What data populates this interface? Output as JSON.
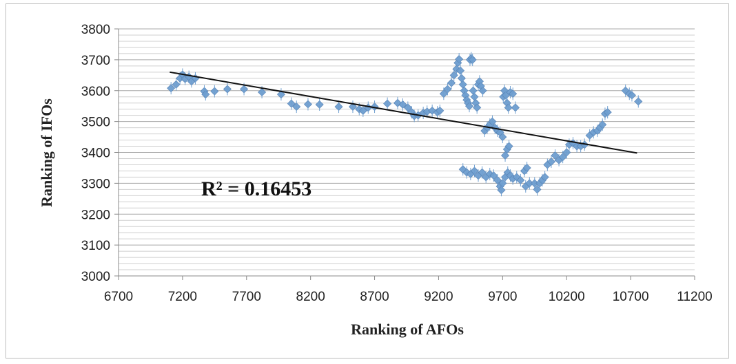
{
  "chart_data": {
    "type": "scatter",
    "xlabel": "Ranking of AFOs",
    "ylabel": "Ranking of IFOs",
    "annotation": "R² = 0.16453",
    "xlim": [
      6700,
      11200
    ],
    "ylim": [
      3000,
      3800
    ],
    "x_ticks": [
      6700,
      7200,
      7700,
      8200,
      8700,
      9200,
      9700,
      10200,
      10700,
      11200
    ],
    "y_ticks": [
      3000,
      3100,
      3200,
      3300,
      3400,
      3500,
      3600,
      3700,
      3800
    ],
    "grid_step_y": 20,
    "legend": "none",
    "marker_color": "#6f9fd0",
    "trendline": {
      "x": [
        7100,
        10750
      ],
      "y": [
        3660,
        3398
      ]
    },
    "series": [
      {
        "points": [
          [
            7110,
            3608
          ],
          [
            7150,
            3620
          ],
          [
            7180,
            3640
          ],
          [
            7200,
            3652
          ],
          [
            7220,
            3638
          ],
          [
            7250,
            3645
          ],
          [
            7270,
            3630
          ],
          [
            7300,
            3640
          ],
          [
            7370,
            3598
          ],
          [
            7380,
            3588
          ],
          [
            7450,
            3598
          ],
          [
            7550,
            3605
          ],
          [
            7680,
            3605
          ],
          [
            7820,
            3595
          ],
          [
            7970,
            3588
          ],
          [
            8050,
            3558
          ],
          [
            8090,
            3548
          ],
          [
            8180,
            3556
          ],
          [
            8270,
            3555
          ],
          [
            8420,
            3548
          ],
          [
            8530,
            3548
          ],
          [
            8580,
            3540
          ],
          [
            8610,
            3535
          ],
          [
            8650,
            3545
          ],
          [
            8700,
            3548
          ],
          [
            8800,
            3558
          ],
          [
            8880,
            3560
          ],
          [
            8920,
            3555
          ],
          [
            8960,
            3545
          ],
          [
            8990,
            3530
          ],
          [
            9010,
            3518
          ],
          [
            9040,
            3520
          ],
          [
            9080,
            3528
          ],
          [
            9110,
            3532
          ],
          [
            9150,
            3535
          ],
          [
            9190,
            3530
          ],
          [
            9210,
            3535
          ],
          [
            9240,
            3590
          ],
          [
            9270,
            3605
          ],
          [
            9300,
            3625
          ],
          [
            9320,
            3650
          ],
          [
            9340,
            3670
          ],
          [
            9350,
            3690
          ],
          [
            9360,
            3702
          ],
          [
            9370,
            3665
          ],
          [
            9380,
            3640
          ],
          [
            9390,
            3620
          ],
          [
            9400,
            3600
          ],
          [
            9410,
            3585
          ],
          [
            9420,
            3570
          ],
          [
            9430,
            3560
          ],
          [
            9440,
            3550
          ],
          [
            9445,
            3700
          ],
          [
            9455,
            3705
          ],
          [
            9465,
            3700
          ],
          [
            9470,
            3600
          ],
          [
            9480,
            3580
          ],
          [
            9490,
            3560
          ],
          [
            9500,
            3545
          ],
          [
            9510,
            3620
          ],
          [
            9520,
            3630
          ],
          [
            9530,
            3615
          ],
          [
            9545,
            3600
          ],
          [
            9560,
            3470
          ],
          [
            9580,
            3480
          ],
          [
            9600,
            3490
          ],
          [
            9620,
            3500
          ],
          [
            9640,
            3480
          ],
          [
            9660,
            3470
          ],
          [
            9680,
            3465
          ],
          [
            9700,
            3450
          ],
          [
            9705,
            3580
          ],
          [
            9715,
            3600
          ],
          [
            9725,
            3585
          ],
          [
            9735,
            3560
          ],
          [
            9745,
            3545
          ],
          [
            9760,
            3595
          ],
          [
            9780,
            3590
          ],
          [
            9800,
            3545
          ],
          [
            9720,
            3390
          ],
          [
            9735,
            3410
          ],
          [
            9750,
            3420
          ],
          [
            9390,
            3345
          ],
          [
            9420,
            3335
          ],
          [
            9450,
            3330
          ],
          [
            9480,
            3340
          ],
          [
            9510,
            3325
          ],
          [
            9540,
            3335
          ],
          [
            9570,
            3320
          ],
          [
            9600,
            3330
          ],
          [
            9630,
            3325
          ],
          [
            9660,
            3310
          ],
          [
            9680,
            3290
          ],
          [
            9690,
            3278
          ],
          [
            9700,
            3300
          ],
          [
            9720,
            3320
          ],
          [
            9740,
            3335
          ],
          [
            9760,
            3325
          ],
          [
            9780,
            3315
          ],
          [
            9810,
            3320
          ],
          [
            9840,
            3310
          ],
          [
            9870,
            3340
          ],
          [
            9890,
            3350
          ],
          [
            9880,
            3290
          ],
          [
            9910,
            3300
          ],
          [
            9950,
            3300
          ],
          [
            9970,
            3280
          ],
          [
            9990,
            3300
          ],
          [
            10010,
            3310
          ],
          [
            10030,
            3320
          ],
          [
            10050,
            3360
          ],
          [
            10080,
            3370
          ],
          [
            10110,
            3390
          ],
          [
            10140,
            3375
          ],
          [
            10170,
            3385
          ],
          [
            10200,
            3400
          ],
          [
            10220,
            3425
          ],
          [
            10250,
            3430
          ],
          [
            10280,
            3420
          ],
          [
            10310,
            3420
          ],
          [
            10340,
            3425
          ],
          [
            10380,
            3455
          ],
          [
            10410,
            3465
          ],
          [
            10440,
            3470
          ],
          [
            10460,
            3480
          ],
          [
            10480,
            3490
          ],
          [
            10500,
            3525
          ],
          [
            10520,
            3530
          ],
          [
            10660,
            3600
          ],
          [
            10690,
            3590
          ],
          [
            10710,
            3585
          ],
          [
            10760,
            3565
          ]
        ]
      }
    ]
  }
}
